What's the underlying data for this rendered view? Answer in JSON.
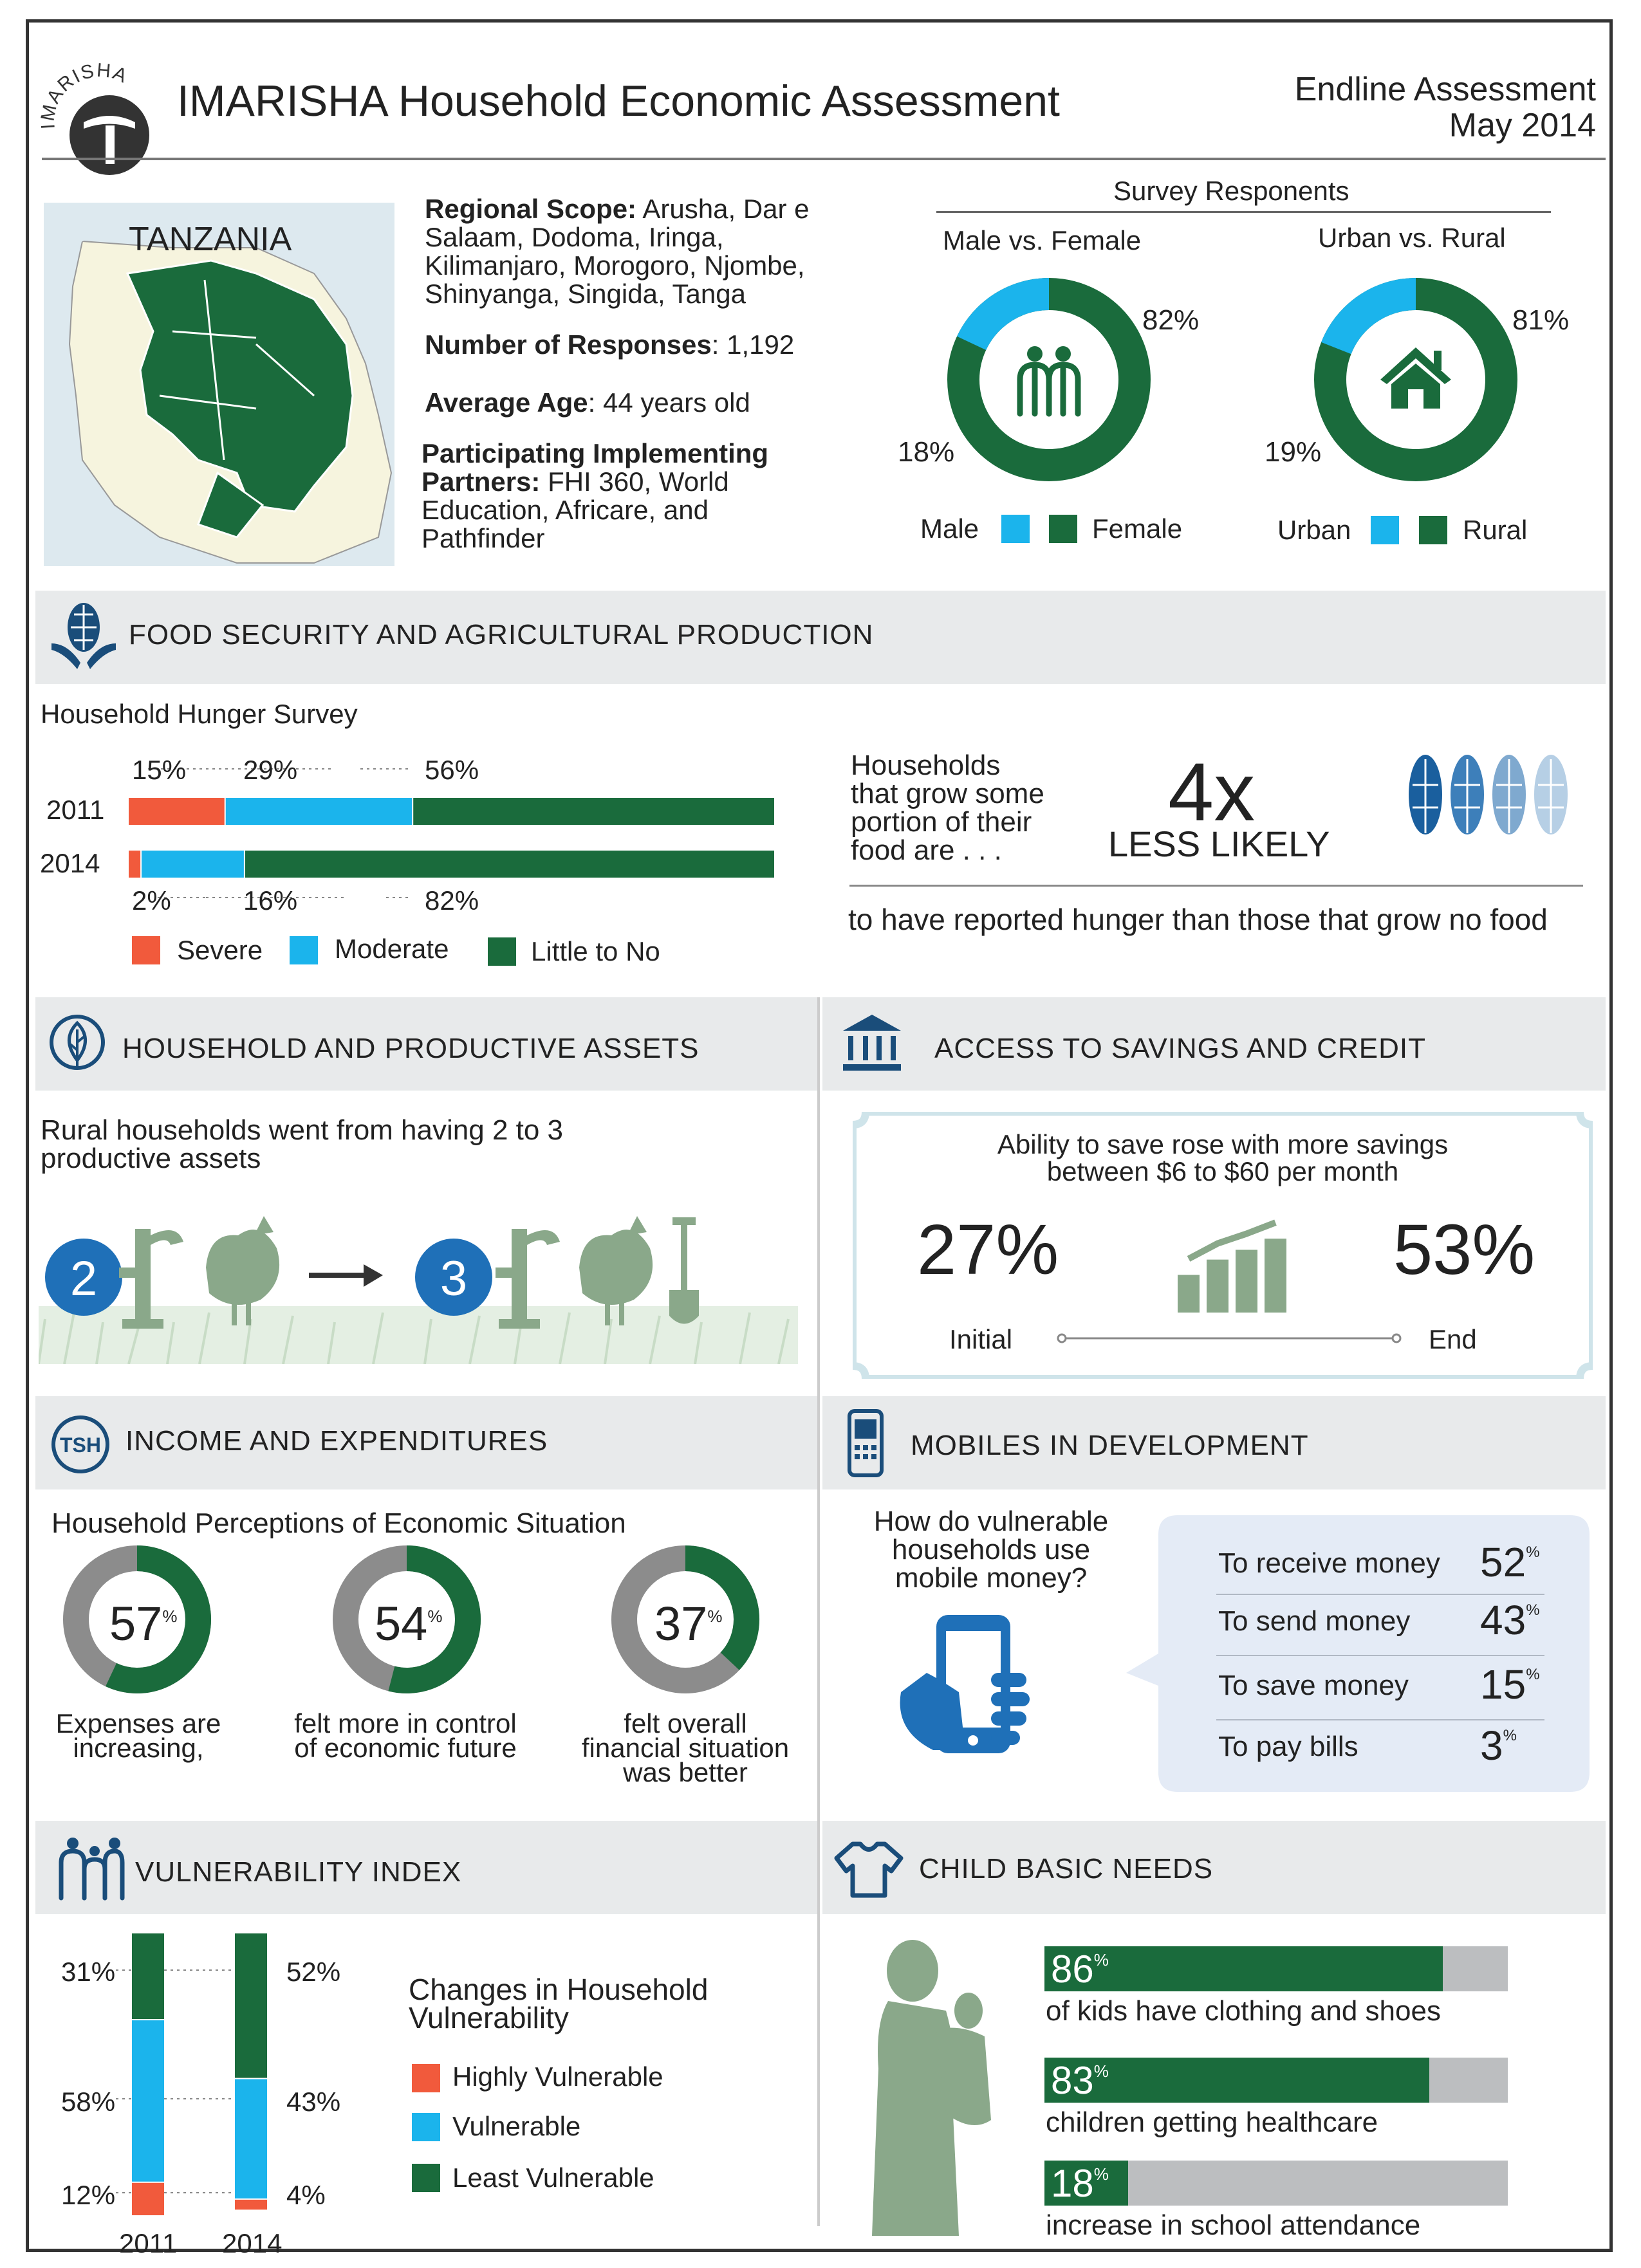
{
  "header": {
    "logo_text": "IMARISHA",
    "title": "IMARISHA Household Economic Assessment",
    "assessment": "Endline Assessment",
    "date": "May 2014"
  },
  "overview": {
    "map_label": "TANZANIA",
    "regional_scope_label": "Regional Scope:",
    "regional_scope_lines": [
      " Arusha, Dar e",
      "Salaam, Dodoma, Iringa,",
      "Kilimanjaro, Morogoro, Njombe,",
      "Shinyanga, Singida, Tanga"
    ],
    "responses_label": "Number of Responses",
    "responses_value": ":  1,192",
    "age_label": "Average Age",
    "age_value": ": 44 years old",
    "partners_label_1": "Participating Implementing",
    "partners_label_2": "Partners:",
    "partners_lines": [
      " FHI 360, World",
      "Education, Africare, and",
      "Pathfinder"
    ]
  },
  "respondents": {
    "title": "Survey Responents",
    "gender": {
      "title": "Male vs. Female",
      "female_pct": "82%",
      "male_pct": "18%",
      "legend_male": "Male",
      "legend_female": "Female"
    },
    "location": {
      "title": "Urban vs. Rural",
      "rural_pct": "81%",
      "urban_pct": "19%",
      "legend_urban": "Urban",
      "legend_rural": "Rural"
    }
  },
  "sections": {
    "food": "FOOD SECURITY AND AGRICULTURAL PRODUCTION",
    "assets": "HOUSEHOLD AND PRODUCTIVE ASSETS",
    "savings": "ACCESS TO SAVINGS AND CREDIT",
    "income": "INCOME AND EXPENDITURES",
    "income_badge": "TSH",
    "mobile": "MOBILES IN DEVELOPMENT",
    "vulnerability": "VULNERABILITY INDEX",
    "child": "CHILD BASIC NEEDS"
  },
  "hunger": {
    "title": "Household Hunger Survey",
    "legend": [
      "Severe",
      "Moderate",
      "Little to No"
    ],
    "year_2011": "2011",
    "year_2014": "2014",
    "labels_2011": [
      "15%",
      "29%",
      "56%"
    ],
    "labels_2014": [
      "2%",
      "16%",
      "82%"
    ]
  },
  "grow_food": {
    "lead_lines": [
      "Households",
      "that grow some",
      "portion of their",
      "food are . . ."
    ],
    "multiplier": "4x",
    "less_likely": "LESS LIKELY",
    "tail": "to have reported hunger than those that grow no food"
  },
  "assets": {
    "text_lines": [
      "Rural households went from having 2 to 3",
      "productive assets"
    ],
    "from": "2",
    "to": "3"
  },
  "savings": {
    "text_lines": [
      "Ability to save rose with more savings",
      "between $6 to $60 per month"
    ],
    "initial_value": "27%",
    "end_value": "53%",
    "initial_label": "Initial",
    "end_label": "End"
  },
  "income": {
    "title": "Household Perceptions of Economic Situation",
    "donuts": [
      {
        "value": "57",
        "pct_sign": "%",
        "lines": [
          "Expenses are",
          "increasing,"
        ]
      },
      {
        "value": "54",
        "pct_sign": "%",
        "lines": [
          "felt more in control",
          "of economic future"
        ]
      },
      {
        "value": "37",
        "pct_sign": "%",
        "lines": [
          "felt overall",
          "financial situation",
          "was better"
        ]
      }
    ]
  },
  "mobile": {
    "question_lines": [
      "How do vulnerable",
      "households use",
      "mobile money?"
    ],
    "uses": [
      {
        "label": "To receive money",
        "value": "52",
        "pct": "%"
      },
      {
        "label": "To send money",
        "value": "43",
        "pct": "%"
      },
      {
        "label": "To save money",
        "value": "15",
        "pct": "%"
      },
      {
        "label": "To pay bills",
        "value": "3",
        "pct": "%"
      }
    ]
  },
  "vulnerability": {
    "subtitle_lines": [
      "Changes in Household",
      "Vulnerability"
    ],
    "legend": [
      "Highly Vulnerable",
      "Vulnerable",
      "Least Vulnerable"
    ],
    "years": [
      "2011",
      "2014"
    ],
    "labels_2011": [
      "31%",
      "58%",
      "12%"
    ],
    "labels_2014": [
      "52%",
      "43%",
      "4%"
    ]
  },
  "child": {
    "items": [
      {
        "value": "86",
        "pct": "%",
        "label": "of kids have clothing and shoes"
      },
      {
        "value": "83",
        "pct": "%",
        "label": "children getting healthcare"
      },
      {
        "value": "18",
        "pct": "%",
        "label": "increase in school attendance"
      }
    ]
  },
  "colors": {
    "green": "#1a6b3c",
    "blue": "#1bb4ec",
    "red": "#f15a3c",
    "gray": "#bcbec0",
    "band": "#e8eaeb"
  },
  "chart_data": [
    {
      "type": "pie",
      "title": "Male vs. Female",
      "labels": [
        "Male",
        "Female"
      ],
      "values": [
        18,
        82
      ]
    },
    {
      "type": "pie",
      "title": "Urban vs. Rural",
      "labels": [
        "Urban",
        "Rural"
      ],
      "values": [
        19,
        81
      ]
    },
    {
      "type": "bar",
      "title": "Household Hunger Survey",
      "orientation": "horizontal",
      "stacked": true,
      "categories": [
        "2011",
        "2014"
      ],
      "series": [
        {
          "name": "Severe",
          "values": [
            15,
            2
          ]
        },
        {
          "name": "Moderate",
          "values": [
            29,
            16
          ]
        },
        {
          "name": "Little to No",
          "values": [
            56,
            82
          ]
        }
      ]
    },
    {
      "type": "line",
      "title": "",
      "categories": [
        "Initial",
        "End"
      ],
      "values": [
        27,
        53
      ]
    },
    {
      "type": "pie",
      "title": "Household Perceptions of Economic Situation",
      "donuts": [
        {
          "label": "Expenses are increasing,",
          "value": 57
        },
        {
          "label": "felt more in control of economic future",
          "value": 54
        },
        {
          "label": "felt overall financial situation was better",
          "value": 37
        }
      ]
    },
    {
      "type": "table",
      "title": "",
      "categories": [
        "To receive money",
        "To send money",
        "To save money",
        "To pay bills"
      ],
      "values": [
        52,
        43,
        15,
        3
      ]
    },
    {
      "type": "bar",
      "title": "Changes in Household Vulnerability",
      "stacked": true,
      "categories": [
        "2011",
        "2014"
      ],
      "series": [
        {
          "name": "Highly Vulnerable",
          "values": [
            12,
            4
          ]
        },
        {
          "name": "Vulnerable",
          "values": [
            58,
            43
          ]
        },
        {
          "name": "Least Vulnerable",
          "values": [
            31,
            52
          ]
        }
      ]
    },
    {
      "type": "bar",
      "title": "",
      "orientation": "horizontal",
      "categories": [
        "of kids have clothing and shoes",
        "children getting healthcare",
        "increase in school attendance"
      ],
      "values": [
        86,
        83,
        18
      ],
      "ylim": [
        0,
        100
      ]
    }
  ]
}
